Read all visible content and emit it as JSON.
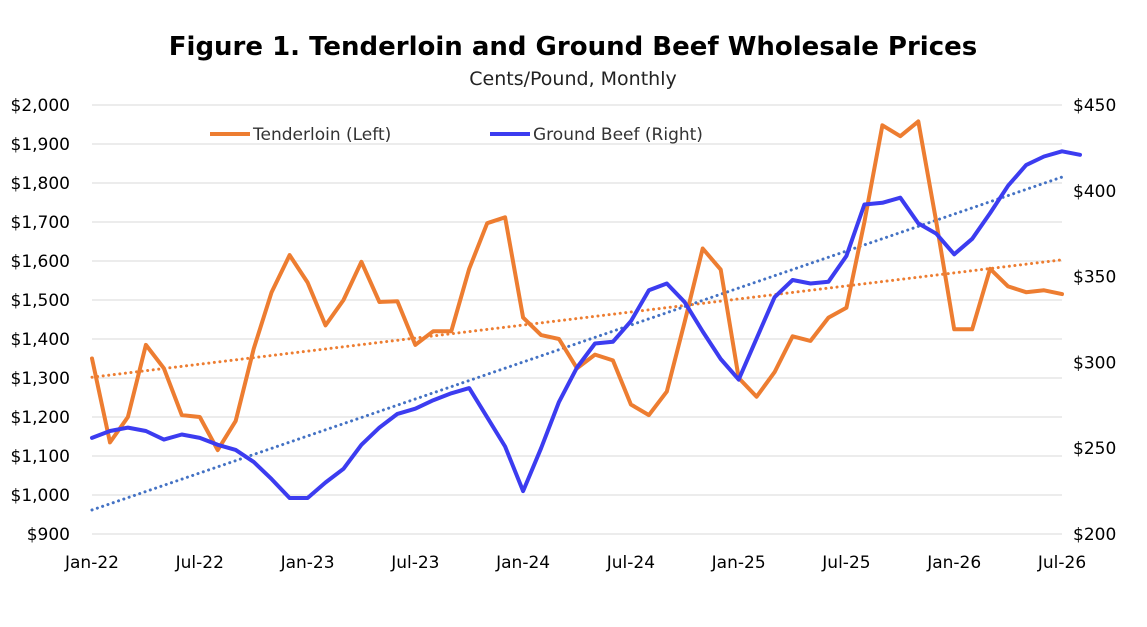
{
  "chart_data": {
    "type": "line",
    "title": "Figure 1. Tenderloin and Ground Beef Wholesale Prices",
    "subtitle": "Cents/Pound, Monthly",
    "x_tick_labels": [
      "Jan-22",
      "Jul-22",
      "Jan-23",
      "Jul-23",
      "Jan-24",
      "Jul-24",
      "Jan-25",
      "Jul-25",
      "Jan-26",
      "Jul-26"
    ],
    "y_left": {
      "ylim": [
        900,
        2000
      ],
      "tick_labels": [
        "$900",
        "$1,000",
        "$1,100",
        "$1,200",
        "$1,300",
        "$1,400",
        "$1,500",
        "$1,600",
        "$1,700",
        "$1,800",
        "$1,900",
        "$2,000"
      ]
    },
    "y_right": {
      "ylim": [
        200,
        450
      ],
      "tick_labels": [
        "$200",
        "$250",
        "$300",
        "$350",
        "$400",
        "$450"
      ]
    },
    "grid": true,
    "legend_position": "top-left",
    "series": [
      {
        "name": "Tenderloin (Left)",
        "axis": "left",
        "color": "#ED7D31",
        "values": [
          1350,
          1135,
          1200,
          1385,
          1325,
          1205,
          1200,
          1115,
          1190,
          1375,
          1520,
          1615,
          1545,
          1435,
          1500,
          1598,
          1495,
          1497,
          1385,
          1420,
          1420,
          1580,
          1697,
          1712,
          1455,
          1410,
          1400,
          1325,
          1360,
          1345,
          1232,
          1205,
          1265,
          1445,
          1632,
          1578,
          1300,
          1252,
          1315,
          1407,
          1395,
          1455,
          1480,
          1700,
          1948,
          1920,
          1958,
          1700,
          1425,
          1425,
          1580,
          1535,
          1520,
          1525,
          1515
        ]
      },
      {
        "name": "Ground Beef (Right)",
        "axis": "right",
        "color": "#3C3CF0",
        "values": [
          256,
          260,
          262,
          260,
          255,
          258,
          256,
          252,
          249,
          242,
          232,
          221,
          221,
          230,
          238,
          252,
          262,
          270,
          273,
          278,
          282,
          285,
          268,
          251,
          225,
          250,
          277,
          297,
          311,
          312,
          324,
          342,
          346,
          335,
          318,
          302,
          290,
          314,
          338,
          348,
          346,
          347,
          362,
          392,
          393,
          396,
          381,
          375,
          363,
          372,
          387,
          403,
          415,
          420,
          423,
          421
        ]
      }
    ],
    "trendlines": [
      {
        "series": "Tenderloin (Left)",
        "axis": "left",
        "color": "#ED7D31",
        "style": "dotted",
        "start": 1302,
        "end": 1603
      },
      {
        "series": "Ground Beef (Right)",
        "axis": "right",
        "color": "#4472C4",
        "style": "dotted",
        "start": 214,
        "end": 408
      }
    ]
  }
}
